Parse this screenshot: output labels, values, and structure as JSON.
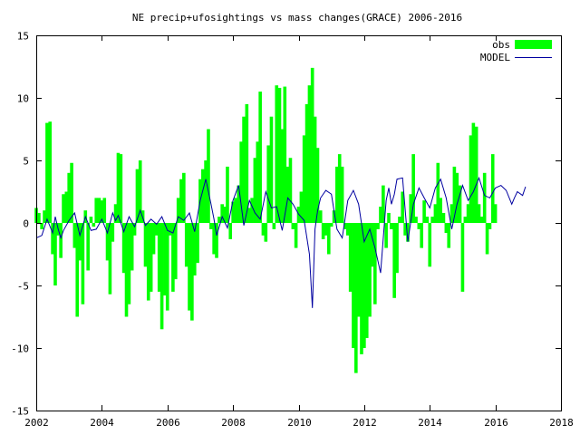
{
  "chart_data": {
    "type": "bar",
    "title": "NE precip+ufosightings vs mass changes(GRACE) 2006-2016",
    "xlabel": "",
    "ylabel": "",
    "xlim": [
      2002,
      2018
    ],
    "ylim": [
      -15,
      15
    ],
    "xticks": [
      2002,
      2004,
      2006,
      2008,
      2010,
      2012,
      2014,
      2016,
      2018
    ],
    "yticks": [
      -15,
      -10,
      -5,
      0,
      5,
      10,
      15
    ],
    "grid": false,
    "legend_position": "top-right",
    "series": [
      {
        "name": "obs",
        "type": "bar",
        "color": "#00ff00",
        "x": [
          2002.0,
          2002.08,
          2002.17,
          2002.25,
          2002.33,
          2002.42,
          2002.5,
          2002.58,
          2002.67,
          2002.75,
          2002.83,
          2002.92,
          2003.0,
          2003.08,
          2003.17,
          2003.25,
          2003.33,
          2003.42,
          2003.5,
          2003.58,
          2003.67,
          2003.75,
          2003.83,
          2003.92,
          2004.0,
          2004.08,
          2004.17,
          2004.25,
          2004.33,
          2004.42,
          2004.5,
          2004.58,
          2004.67,
          2004.75,
          2004.83,
          2004.92,
          2005.0,
          2005.08,
          2005.17,
          2005.25,
          2005.33,
          2005.42,
          2005.5,
          2005.58,
          2005.67,
          2005.75,
          2005.83,
          2005.92,
          2006.0,
          2006.08,
          2006.17,
          2006.25,
          2006.33,
          2006.42,
          2006.5,
          2006.58,
          2006.67,
          2006.75,
          2006.83,
          2006.92,
          2007.0,
          2007.08,
          2007.17,
          2007.25,
          2007.33,
          2007.42,
          2007.5,
          2007.58,
          2007.67,
          2007.75,
          2007.83,
          2007.92,
          2008.0,
          2008.08,
          2008.17,
          2008.25,
          2008.33,
          2008.42,
          2008.5,
          2008.58,
          2008.67,
          2008.75,
          2008.83,
          2008.92,
          2009.0,
          2009.08,
          2009.17,
          2009.25,
          2009.33,
          2009.42,
          2009.5,
          2009.58,
          2009.67,
          2009.75,
          2009.83,
          2009.92,
          2010.0,
          2010.08,
          2010.17,
          2010.25,
          2010.33,
          2010.42,
          2010.5,
          2010.58,
          2010.67,
          2010.75,
          2010.83,
          2010.92,
          2011.0,
          2011.08,
          2011.17,
          2011.25,
          2011.33,
          2011.42,
          2011.5,
          2011.58,
          2011.67,
          2011.75,
          2011.83,
          2011.92,
          2012.0,
          2012.08,
          2012.17,
          2012.25,
          2012.33,
          2012.42,
          2012.5,
          2012.58,
          2012.67,
          2012.75,
          2012.83,
          2012.92,
          2013.0,
          2013.08,
          2013.17,
          2013.25,
          2013.33,
          2013.42,
          2013.5,
          2013.58,
          2013.67,
          2013.75,
          2013.83,
          2013.92,
          2014.0,
          2014.08,
          2014.17,
          2014.25,
          2014.33,
          2014.42,
          2014.5,
          2014.58,
          2014.67,
          2014.75,
          2014.83,
          2014.92,
          2015.0,
          2015.08,
          2015.17,
          2015.25,
          2015.33,
          2015.42,
          2015.5,
          2015.58,
          2015.67,
          2015.75,
          2015.83,
          2015.92,
          2016.0,
          2016.08,
          2016.17,
          2016.25,
          2016.33,
          2016.42,
          2016.5,
          2016.58,
          2016.67,
          2016.75,
          2016.83,
          2016.92
        ],
        "values": [
          1.2,
          0.8,
          -0.5,
          1.0,
          8.0,
          8.1,
          -2.5,
          -5.0,
          -1.0,
          -2.8,
          2.3,
          2.5,
          4.0,
          4.8,
          -2.0,
          -7.5,
          -3.0,
          -6.5,
          1.0,
          -3.8,
          0.5,
          -0.3,
          2.0,
          2.0,
          1.8,
          2.0,
          -3.0,
          -5.7,
          -1.5,
          1.5,
          5.6,
          5.5,
          -4.0,
          -7.5,
          -6.5,
          -3.8,
          -1.0,
          4.3,
          5.0,
          1.0,
          -3.5,
          -6.2,
          -5.5,
          -2.5,
          -1.0,
          -5.5,
          -8.5,
          -5.8,
          -7.0,
          -1.0,
          -5.5,
          -4.5,
          2.0,
          3.5,
          4.0,
          -3.5,
          -7.0,
          -7.8,
          -4.2,
          -3.2,
          3.5,
          4.3,
          5.0,
          7.5,
          -0.5,
          -2.5,
          -2.8,
          0.5,
          1.5,
          1.3,
          4.5,
          -1.3,
          1.7,
          2.0,
          3.0,
          6.5,
          8.5,
          9.5,
          1.2,
          2.0,
          5.2,
          6.5,
          10.5,
          -1.0,
          -1.5,
          6.2,
          8.5,
          -0.5,
          11.0,
          10.8,
          7.5,
          10.9,
          4.5,
          5.2,
          -0.5,
          -2.0,
          1.3,
          2.5,
          7.0,
          9.5,
          11.0,
          12.4,
          8.5,
          6.0,
          1.0,
          -1.3,
          -1.0,
          -2.5,
          -0.3,
          1.0,
          4.5,
          5.5,
          4.5,
          -0.5,
          -1.0,
          -5.5,
          -10.0,
          -12.0,
          -7.5,
          -10.5,
          -10.0,
          -9.2,
          -7.5,
          -3.5,
          -6.5,
          -0.5,
          1.3,
          3.0,
          -2.0,
          0.8,
          -0.5,
          -6.0,
          -4.0,
          0.5,
          2.5,
          -1.0,
          -1.5,
          2.3,
          5.5,
          0.5,
          -0.5,
          -2.0,
          1.8,
          0.5,
          -3.5,
          0.5,
          1.5,
          4.8,
          2.0,
          0.8,
          -0.8,
          -2.0,
          1.5,
          4.5,
          4.0,
          3.0,
          -5.5,
          0.5,
          1.5,
          7.0,
          8.0,
          7.7,
          1.5,
          0.5,
          4.0,
          -2.5,
          -0.5,
          5.5,
          1.5,
          0.0,
          0.0,
          0.0,
          0.0,
          0.0,
          0.0,
          0.0,
          0.0,
          0.0,
          0.0,
          0.0
        ]
      },
      {
        "name": "MODEL",
        "type": "line",
        "color": "#0000a0",
        "x": [
          2002.0,
          2002.17,
          2002.33,
          2002.5,
          2002.58,
          2002.67,
          2002.75,
          2002.83,
          2003.0,
          2003.17,
          2003.33,
          2003.5,
          2003.67,
          2003.83,
          2004.0,
          2004.17,
          2004.33,
          2004.42,
          2004.5,
          2004.67,
          2004.83,
          2005.0,
          2005.17,
          2005.33,
          2005.5,
          2005.67,
          2005.83,
          2006.0,
          2006.17,
          2006.33,
          2006.5,
          2006.67,
          2006.83,
          2007.0,
          2007.17,
          2007.33,
          2007.42,
          2007.5,
          2007.67,
          2007.83,
          2008.0,
          2008.17,
          2008.33,
          2008.5,
          2008.67,
          2008.83,
          2009.0,
          2009.17,
          2009.33,
          2009.5,
          2009.67,
          2009.83,
          2010.0,
          2010.17,
          2010.33,
          2010.42,
          2010.5,
          2010.58,
          2010.67,
          2010.83,
          2011.0,
          2011.17,
          2011.33,
          2011.5,
          2011.67,
          2011.83,
          2012.0,
          2012.17,
          2012.33,
          2012.5,
          2012.67,
          2012.75,
          2012.83,
          2012.92,
          2013.0,
          2013.17,
          2013.33,
          2013.5,
          2013.67,
          2013.83,
          2014.0,
          2014.17,
          2014.33,
          2014.5,
          2014.67,
          2014.83,
          2015.0,
          2015.17,
          2015.33,
          2015.5,
          2015.67,
          2015.83,
          2016.0,
          2016.17,
          2016.33,
          2016.5,
          2016.58,
          2016.67,
          2016.83,
          2016.92
        ],
        "values": [
          -1.2,
          -1.0,
          0.3,
          -0.8,
          0.5,
          -0.5,
          -1.2,
          -0.6,
          0.2,
          0.8,
          -1.0,
          0.5,
          -0.6,
          -0.5,
          0.3,
          -0.8,
          0.8,
          0.2,
          0.6,
          -0.7,
          0.5,
          -0.3,
          1.0,
          -0.2,
          0.3,
          -0.1,
          0.5,
          -0.6,
          -0.8,
          0.5,
          0.2,
          0.8,
          -0.7,
          1.8,
          3.5,
          1.5,
          0.3,
          -1.0,
          0.5,
          -0.4,
          1.8,
          3.0,
          -0.2,
          1.8,
          0.8,
          0.3,
          2.5,
          1.2,
          1.3,
          -0.6,
          2.0,
          1.5,
          0.7,
          0.2,
          -2.5,
          -6.8,
          -0.5,
          1.0,
          2.0,
          2.6,
          2.3,
          -0.5,
          -1.2,
          1.8,
          2.6,
          1.5,
          -1.5,
          -0.5,
          -2.0,
          -4.0,
          1.8,
          2.8,
          1.5,
          2.3,
          3.5,
          3.6,
          -1.5,
          1.5,
          2.8,
          2.0,
          1.2,
          2.8,
          3.5,
          2.0,
          -0.5,
          1.5,
          3.0,
          1.8,
          2.5,
          3.6,
          2.2,
          2.0,
          2.8,
          3.0,
          2.6,
          1.5,
          2.0,
          2.5,
          2.2,
          2.9
        ]
      }
    ]
  }
}
